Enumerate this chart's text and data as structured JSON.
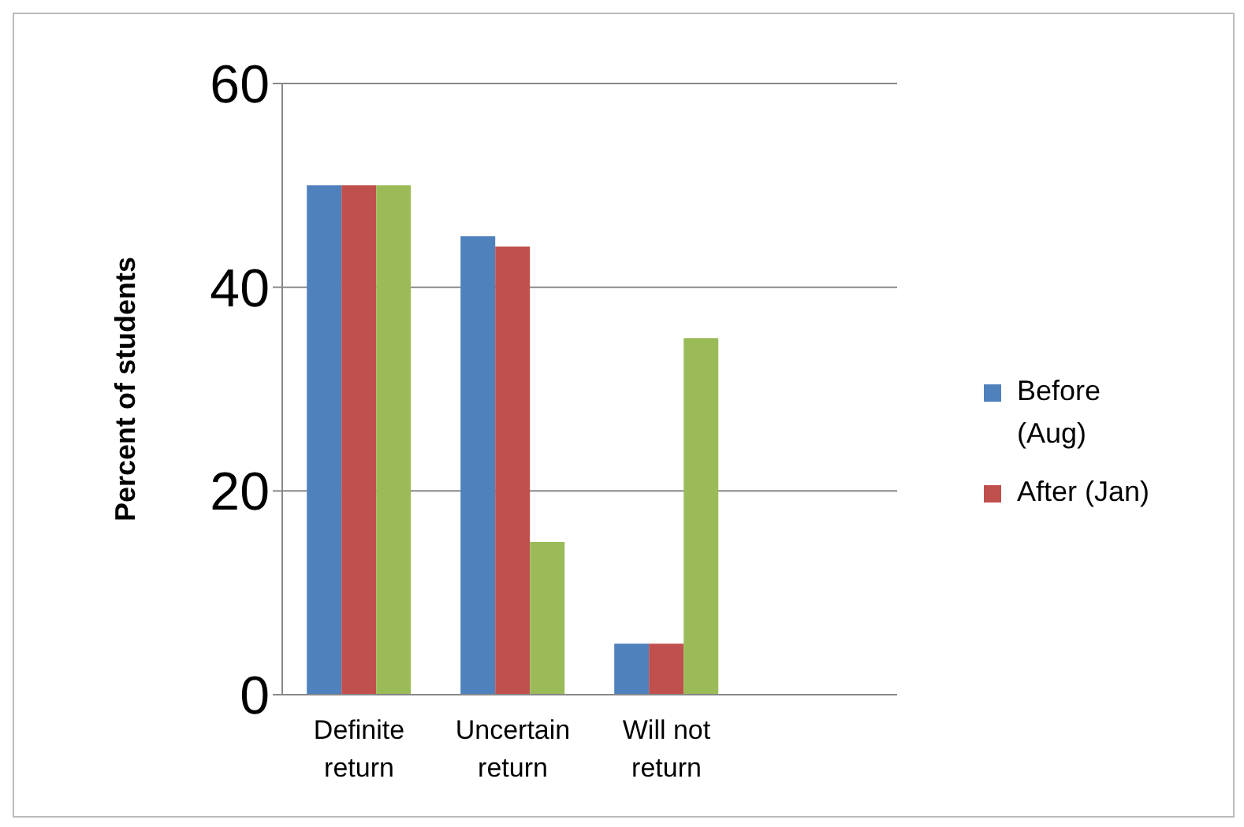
{
  "chart_data": {
    "type": "bar",
    "ylabel": "Percent of students",
    "categories": [
      "Definite return",
      "Uncertain return",
      "Will not return",
      null
    ],
    "series": [
      {
        "name": "Before (Aug)",
        "color": "#4f81bd",
        "values": [
          50,
          45,
          5,
          null
        ]
      },
      {
        "name": "After (Jan)",
        "color": "#c0504d",
        "values": [
          50,
          44,
          5,
          null
        ]
      },
      {
        "color": "#9bbb59",
        "values": [
          50,
          15,
          35,
          null
        ]
      }
    ],
    "ylim": [
      0,
      60
    ],
    "yticks": [
      0,
      20,
      40,
      60
    ],
    "grid": "y",
    "legend": "right"
  }
}
